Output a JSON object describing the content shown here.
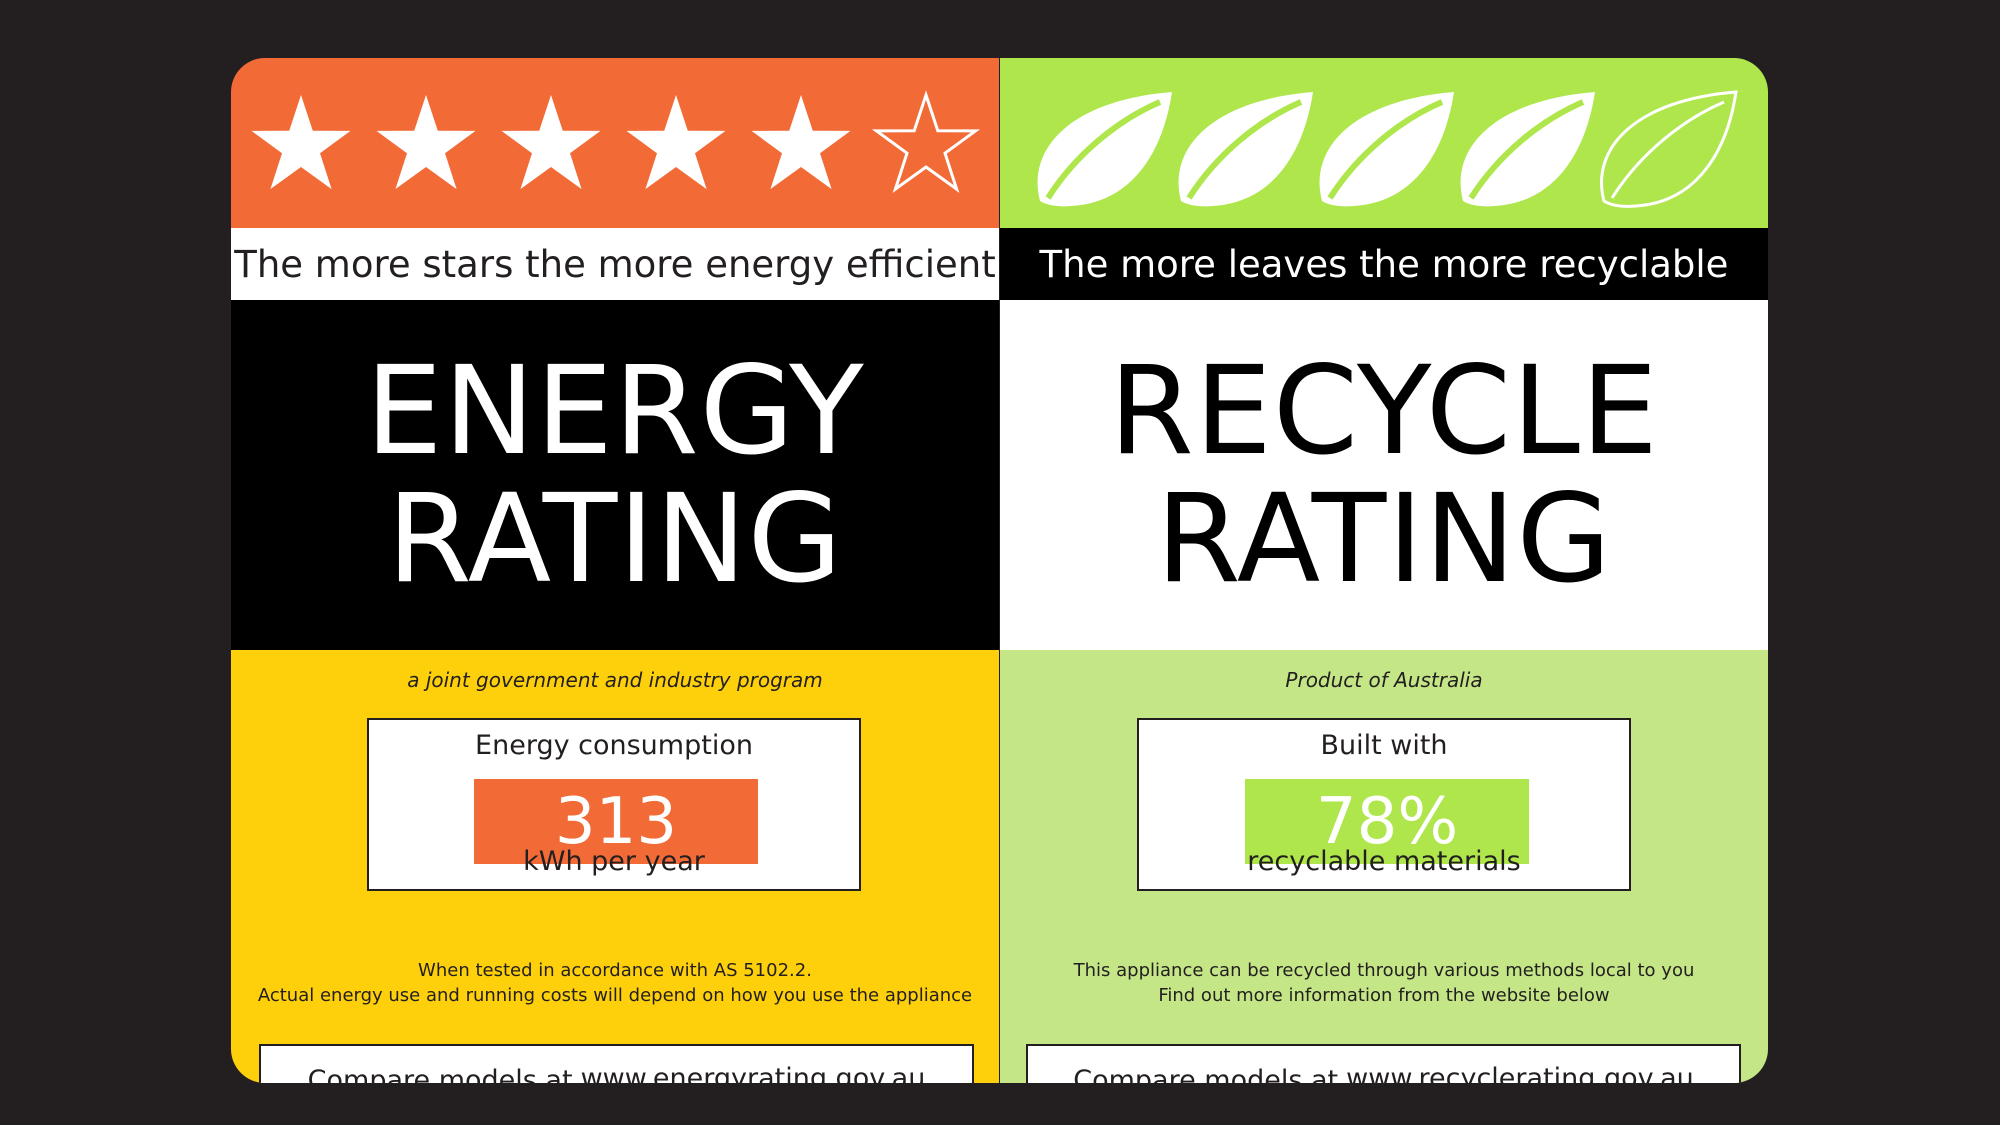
{
  "energy": {
    "rating_stars_filled": 5,
    "rating_stars_total": 6,
    "tagline": "The more stars the more energy efficient",
    "title_line1": "ENERGY",
    "title_line2": "RATING",
    "subtitle": "a joint government and industry program",
    "consumption_label": "Energy consumption",
    "consumption_value": "313",
    "consumption_unit": "kWh per year",
    "note_line1": "When tested in accordance with AS 5102.2.",
    "note_line2": "Actual energy use and running costs will depend on how you use the appliance",
    "compare_prefix": "Compare models at",
    "compare_url": "www.energyrating.gov.au",
    "colors": {
      "accent": "#f26a36",
      "lower": "#fdd00b"
    },
    "icon": "star-icon"
  },
  "recycle": {
    "rating_leaves_filled": 4,
    "rating_leaves_total": 5,
    "tagline": "The more leaves the more recyclable",
    "title_line1": "RECYCLE",
    "title_line2": "RATING",
    "subtitle": "Product of Australia",
    "built_label": "Built with",
    "built_value": "78%",
    "built_unit": "recyclable materials",
    "note_line1": "This appliance can be recycled through various methods local to you",
    "note_line2": "Find out more information from the website below",
    "compare_prefix": "Compare models at",
    "compare_url": "www.recyclerating.gov.au",
    "colors": {
      "accent": "#aee64b",
      "lower": "#c4e686"
    },
    "icon": "leaf-icon"
  }
}
